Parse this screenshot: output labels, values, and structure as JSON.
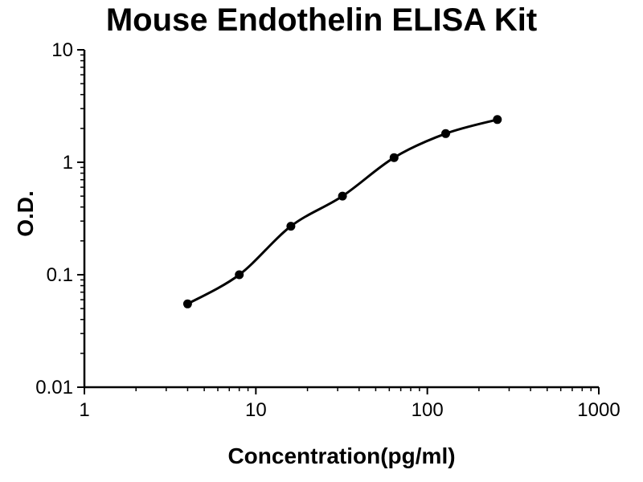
{
  "chart_data": {
    "type": "scatter",
    "title": "Mouse Endothelin ELISA Kit",
    "xlabel": "Concentration(pg/ml)",
    "ylabel": "O.D.",
    "xscale": "log",
    "yscale": "log",
    "xlim": [
      1,
      1000
    ],
    "ylim": [
      0.01,
      10
    ],
    "x_tick_labels": [
      "1",
      "10",
      "100",
      "1000"
    ],
    "y_tick_labels": [
      "0.01",
      "0.1",
      "1",
      "10"
    ],
    "grid": false,
    "legend": null,
    "points": {
      "x": [
        4,
        8,
        16,
        32,
        64,
        128,
        256
      ],
      "y": [
        0.055,
        0.1,
        0.27,
        0.5,
        1.1,
        1.8,
        2.4
      ]
    },
    "curve": "smooth fit line through points",
    "line_color": "#000000",
    "marker_color": "#000000",
    "axis_color": "#000000"
  }
}
